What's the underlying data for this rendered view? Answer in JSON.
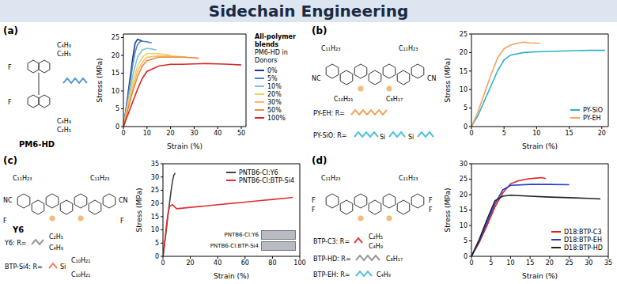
{
  "title": "Sidechain Engineering",
  "chart_data": [
    {
      "panel": "(a)",
      "type": "line",
      "structure_name": "PM6-HD",
      "structure_labels": [
        "C₄H₉",
        "C₂H₅",
        "F",
        "C₄H₉",
        "C₂H₅",
        "F"
      ],
      "x_label": "Strain (%)",
      "y_label": "Stress (MPa)",
      "xlim": [
        0,
        52
      ],
      "xticks": [
        0,
        10,
        20,
        30,
        40,
        50
      ],
      "ylim": [
        0,
        26
      ],
      "yticks": [
        0,
        5,
        10,
        15,
        20,
        25
      ],
      "legend": "right",
      "legend_title": "All-polymer blends",
      "legend_subtitle": "PM6-HD in Donors",
      "series": [
        {
          "name": "0%",
          "color": "#1f3b8c",
          "x": [
            0,
            1,
            2,
            3,
            4,
            5,
            6,
            7,
            8
          ],
          "values": [
            0,
            4.5,
            9.5,
            14.5,
            19.5,
            23.5,
            24.5,
            24.3,
            24
          ]
        },
        {
          "name": "5%",
          "color": "#4f86c6",
          "x": [
            0,
            1,
            2,
            3,
            4,
            5,
            6,
            7,
            8,
            10,
            12
          ],
          "values": [
            0,
            4,
            8.5,
            13,
            17.5,
            21,
            23,
            23.8,
            24,
            23.8,
            23.5
          ]
        },
        {
          "name": "10%",
          "color": "#7fc4e0",
          "x": [
            0,
            2,
            4,
            6,
            8,
            10,
            12,
            14
          ],
          "values": [
            0,
            7.5,
            14.5,
            19.5,
            21.5,
            22,
            21.8,
            21.5
          ]
        },
        {
          "name": "20%",
          "color": "#f2d35b",
          "x": [
            0,
            2,
            4,
            6,
            8,
            10,
            14,
            18,
            20
          ],
          "values": [
            0,
            6.5,
            12.5,
            17,
            19.5,
            20.5,
            20.5,
            20.3,
            20
          ]
        },
        {
          "name": "30%",
          "color": "#f5b96b",
          "x": [
            0,
            2,
            4,
            6,
            8,
            10,
            15,
            20,
            25,
            27
          ],
          "values": [
            0,
            5.5,
            11,
            15.5,
            18,
            19.5,
            19.8,
            19.8,
            19.6,
            19.5
          ]
        },
        {
          "name": "50%",
          "color": "#ee8a3a",
          "x": [
            0,
            2,
            4,
            6,
            8,
            10,
            15,
            20,
            25,
            30,
            32
          ],
          "values": [
            0,
            5,
            10,
            14,
            17,
            18.5,
            19.5,
            19.5,
            19.5,
            19.3,
            19.2
          ]
        },
        {
          "name": "100%",
          "color": "#d62728",
          "x": [
            0,
            2,
            4,
            6,
            8,
            10,
            15,
            20,
            25,
            30,
            35,
            40,
            45,
            50
          ],
          "values": [
            0,
            3.5,
            7,
            10.5,
            13.5,
            15.5,
            17,
            17.5,
            17.5,
            17.6,
            17.7,
            17.6,
            17.5,
            17.3
          ]
        }
      ]
    },
    {
      "panel": "(b)",
      "type": "line",
      "structure_labels": [
        "C₁₁H₂₃",
        "C₁₁H₂₃",
        "C₁₀H₂₁",
        "C₈H₁₇",
        "NC",
        "CN",
        "PY-EH: R=",
        "PY-SiO: R=",
        "Si",
        "Si"
      ],
      "x_label": "Strain (%)",
      "y_label": "Stress (MPa)",
      "xlim": [
        0,
        21
      ],
      "xticks": [
        0,
        5,
        10,
        15,
        20
      ],
      "ylim": [
        0,
        25
      ],
      "yticks": [
        0,
        5,
        10,
        15,
        20,
        25
      ],
      "legend": "lower right",
      "series": [
        {
          "name": "PY-SiO",
          "color": "#2ab0c8",
          "x": [
            0,
            1,
            2,
            3,
            4,
            5,
            6,
            8,
            10,
            12,
            14,
            16,
            18,
            20,
            20.5
          ],
          "values": [
            0,
            3,
            7,
            11,
            15,
            18,
            19.3,
            20,
            20.2,
            20.3,
            20.4,
            20.5,
            20.6,
            20.6,
            20.6
          ]
        },
        {
          "name": "PY-EH",
          "color": "#f4a460",
          "x": [
            0,
            1,
            2,
            3,
            4,
            5,
            6,
            7,
            8,
            9,
            10.5
          ],
          "values": [
            0,
            4,
            9,
            14,
            18.5,
            21,
            22,
            22.5,
            22.8,
            22.6,
            22.5
          ]
        }
      ]
    },
    {
      "panel": "(c)",
      "type": "line",
      "structure_name": "Y6",
      "structure_labels": [
        "C₁₁H₂₃",
        "C₁₁H₂₃",
        "NC",
        "CN",
        "F",
        "F",
        "Y6: R=",
        "BTP-Si4: R=",
        "C₂H₅",
        "C₄H₉",
        "Si",
        "C₁₀H₂₁",
        "C₁₀H₂₁"
      ],
      "inset_labels": [
        "PNTB6-Cl:Y6",
        "PNTB6-Cl:BTP-Si4"
      ],
      "x_label": "Strain (%)",
      "y_label": "Stress (MPa)",
      "xlim": [
        0,
        100
      ],
      "xticks": [
        0,
        20,
        40,
        60,
        80,
        100
      ],
      "ylim": [
        0,
        35
      ],
      "yticks": [
        0,
        5,
        10,
        15,
        20,
        25,
        30,
        35
      ],
      "legend": "upper right",
      "series": [
        {
          "name": "PNTB6-Cl:Y6",
          "color": "#444444",
          "x": [
            0,
            1,
            2,
            3,
            4,
            5,
            6,
            7,
            8,
            9
          ],
          "values": [
            0,
            4,
            8,
            12.5,
            17,
            21,
            25,
            28.5,
            30.8,
            31.5
          ]
        },
        {
          "name": "PNTB6-Cl:BTP-Si4",
          "color": "#e03030",
          "x": [
            0,
            1,
            2,
            3,
            4,
            5,
            7,
            10,
            20,
            30,
            40,
            50,
            60,
            70,
            80,
            90,
            95
          ],
          "values": [
            0,
            4,
            9,
            13.5,
            17,
            19,
            19.5,
            18,
            18.5,
            19,
            19.5,
            20,
            20.5,
            21,
            21.5,
            22,
            22.3
          ]
        }
      ]
    },
    {
      "panel": "(d)",
      "type": "line",
      "structure_labels": [
        "C₁₁H₂₃",
        "C₁₁H₂₃",
        "F",
        "F",
        "F",
        "F",
        "BTP-C3: R=",
        "C₂H₅",
        "C₄H₉",
        "BTP-HD: R=",
        "C₈H₁₇",
        "BTP-EH: R=",
        "C₄H₉"
      ],
      "x_label": "Strain (%)",
      "y_label": "Stress (MPa)",
      "xlim": [
        0,
        35
      ],
      "xticks": [
        0,
        5,
        10,
        15,
        20,
        25,
        30,
        35
      ],
      "ylim": [
        0,
        30
      ],
      "yticks": [
        0,
        5,
        10,
        15,
        20,
        25,
        30
      ],
      "legend": "lower right",
      "series": [
        {
          "name": "D18:BTP-C3",
          "color": "#e02020",
          "x": [
            0,
            2,
            4,
            6,
            8,
            10,
            12,
            14,
            16,
            18,
            19
          ],
          "values": [
            0,
            4.5,
            10,
            16,
            20.5,
            23.5,
            24.5,
            25,
            25.3,
            25.5,
            25.2
          ]
        },
        {
          "name": "D18:BTP-EH",
          "color": "#1f3fd0",
          "x": [
            0,
            2,
            4,
            6,
            8,
            10,
            15,
            20,
            25
          ],
          "values": [
            0,
            5,
            11,
            17,
            21.5,
            23,
            23.3,
            23.3,
            23.2
          ]
        },
        {
          "name": "D18:BTP-HD",
          "color": "#222222",
          "x": [
            0,
            2,
            4,
            6,
            8,
            10,
            15,
            20,
            25,
            30,
            33
          ],
          "values": [
            0,
            5.5,
            12,
            18,
            19.5,
            19.8,
            19.5,
            19.2,
            19,
            18.8,
            18.6
          ]
        }
      ]
    }
  ]
}
